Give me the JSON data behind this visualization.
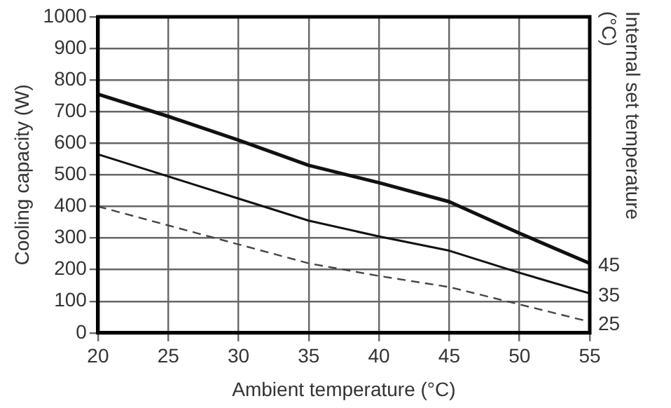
{
  "chart_data": {
    "type": "line",
    "xlabel": "Ambient temperature (°C)",
    "ylabel": "Cooling capacity (W)",
    "y2label": "Internal set temperature (°C)",
    "x": [
      20,
      25,
      30,
      35,
      40,
      45,
      50,
      55
    ],
    "series": [
      {
        "name": "45",
        "color": "#111111",
        "values": [
          755,
          685,
          610,
          530,
          475,
          415,
          315,
          220
        ]
      },
      {
        "name": "35",
        "color": "#111111",
        "values": [
          565,
          495,
          425,
          355,
          305,
          260,
          190,
          125
        ]
      },
      {
        "name": "25",
        "color": "#444444",
        "values": [
          400,
          340,
          280,
          220,
          180,
          145,
          90,
          35
        ],
        "line_style": "dashed"
      }
    ],
    "xlim": [
      20,
      55
    ],
    "xticks": [
      20,
      25,
      30,
      35,
      40,
      45,
      50,
      55
    ],
    "ylim": [
      0,
      1000
    ],
    "yticks": [
      0,
      100,
      200,
      300,
      400,
      500,
      600,
      700,
      800,
      900,
      1000
    ],
    "grid": true,
    "legend": false,
    "marker": "none"
  }
}
